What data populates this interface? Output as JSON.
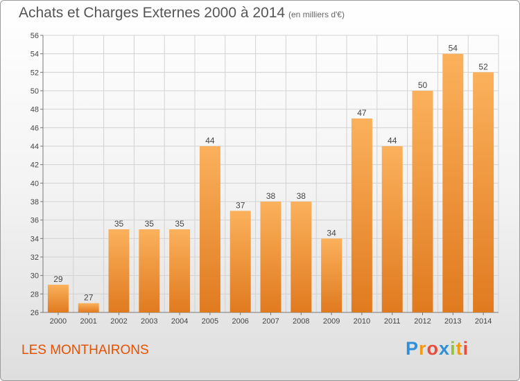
{
  "header": {
    "title": "Achats et Charges Externes 2000 à 2014",
    "unit": "(en milliers d'€)"
  },
  "footer": {
    "commune": "LES MONTHAIRONS",
    "brand": "Proxiti"
  },
  "colors": {
    "bar_light": "#fbb15c",
    "bar_dark": "#e07a1f",
    "commune_text": "#e65100",
    "grid": "#d2d2d2"
  },
  "chart_data": {
    "type": "bar",
    "title": "Achats et Charges Externes 2000 à 2014",
    "subtitle": "(en milliers d'€)",
    "xlabel": "",
    "ylabel": "",
    "categories": [
      "2000",
      "2001",
      "2002",
      "2003",
      "2004",
      "2005",
      "2006",
      "2007",
      "2008",
      "2009",
      "2010",
      "2011",
      "2012",
      "2013",
      "2014"
    ],
    "values": [
      29,
      27,
      35,
      35,
      35,
      44,
      37,
      38,
      38,
      34,
      47,
      44,
      50,
      54,
      52
    ],
    "ylim": [
      26,
      56
    ],
    "yticks": [
      26,
      28,
      30,
      32,
      34,
      36,
      38,
      40,
      42,
      44,
      46,
      48,
      50,
      52,
      54,
      56
    ],
    "grid": true,
    "data_labels": true
  }
}
